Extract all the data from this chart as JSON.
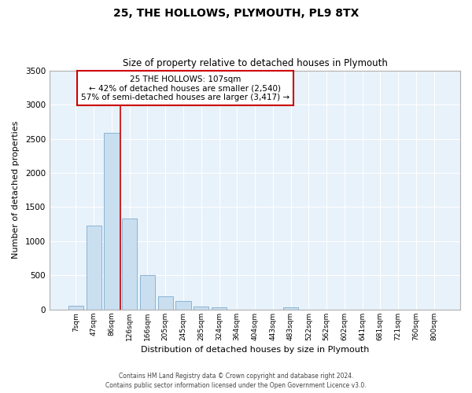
{
  "title": "25, THE HOLLOWS, PLYMOUTH, PL9 8TX",
  "subtitle": "Size of property relative to detached houses in Plymouth",
  "xlabel": "Distribution of detached houses by size in Plymouth",
  "ylabel": "Number of detached properties",
  "bar_color": "#c9dff0",
  "bar_edge_color": "#8ab4d4",
  "background_color": "#e8f2fa",
  "grid_color": "#ffffff",
  "bins": [
    "7sqm",
    "47sqm",
    "86sqm",
    "126sqm",
    "166sqm",
    "205sqm",
    "245sqm",
    "285sqm",
    "324sqm",
    "364sqm",
    "404sqm",
    "443sqm",
    "483sqm",
    "522sqm",
    "562sqm",
    "602sqm",
    "641sqm",
    "681sqm",
    "721sqm",
    "760sqm",
    "800sqm"
  ],
  "values": [
    55,
    1230,
    2585,
    1330,
    500,
    200,
    120,
    45,
    30,
    0,
    0,
    0,
    35,
    0,
    0,
    0,
    0,
    0,
    0,
    0,
    0
  ],
  "ylim": [
    0,
    3500
  ],
  "yticks": [
    0,
    500,
    1000,
    1500,
    2000,
    2500,
    3000,
    3500
  ],
  "vline_x": 2.5,
  "vline_color": "#cc0000",
  "annotation_title": "25 THE HOLLOWS: 107sqm",
  "annotation_line1": "← 42% of detached houses are smaller (2,540)",
  "annotation_line2": "57% of semi-detached houses are larger (3,417) →",
  "annotation_box_color": "#ffffff",
  "annotation_box_edge": "#cc0000",
  "footer1": "Contains HM Land Registry data © Crown copyright and database right 2024.",
  "footer2": "Contains public sector information licensed under the Open Government Licence v3.0."
}
